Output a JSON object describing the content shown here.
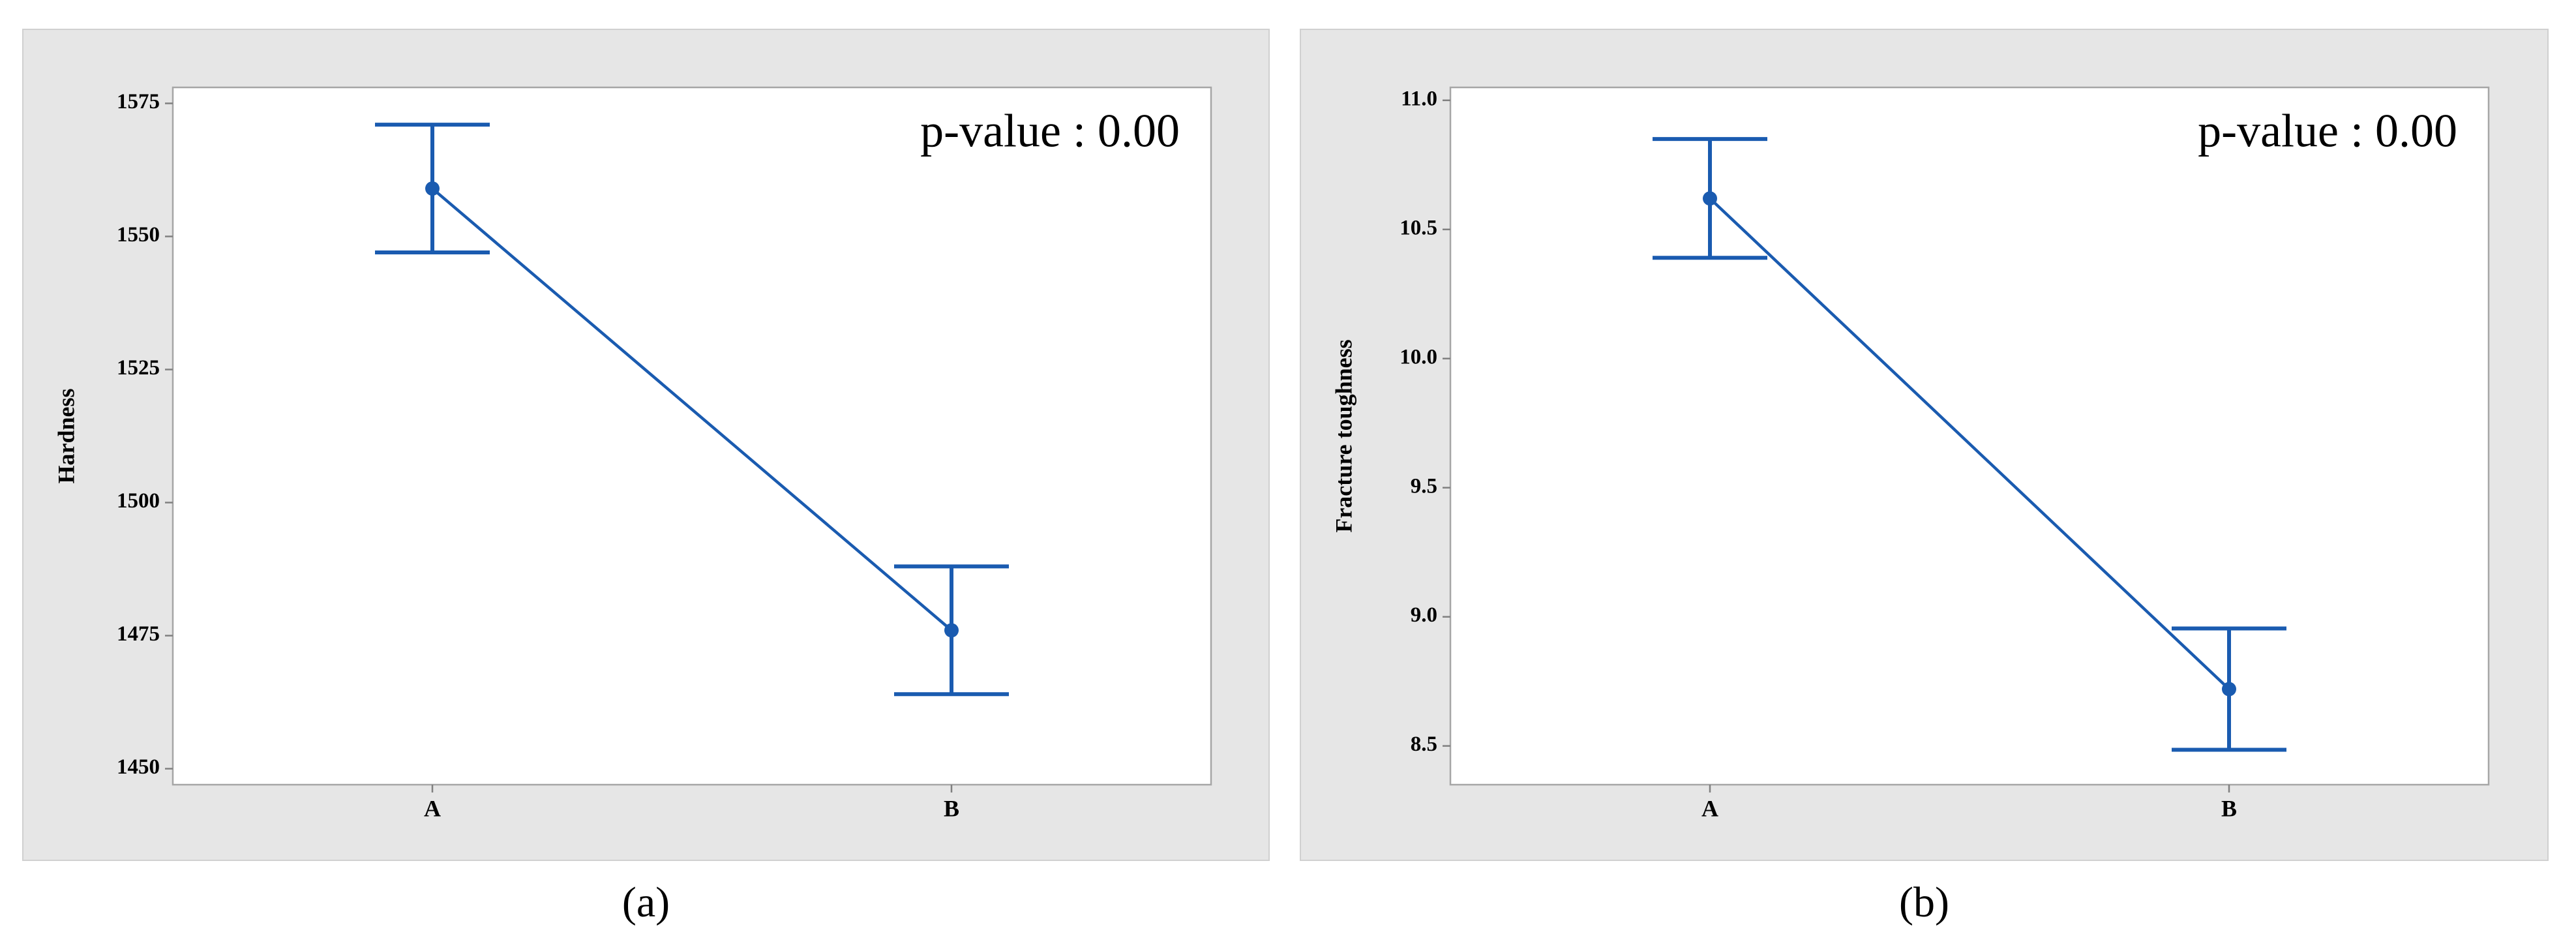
{
  "chart_data": [
    {
      "type": "line",
      "y_label": "Hardness",
      "categories": [
        "A",
        "B"
      ],
      "series": [
        {
          "color": "#1a5bb0",
          "values": [
            1559,
            1476
          ],
          "errors": [
            12,
            12
          ]
        }
      ],
      "ylim": [
        1447,
        1578
      ],
      "yticks": [
        1450,
        1475,
        1500,
        1525,
        1550,
        1575
      ],
      "annotation": "p-value : 0.00",
      "caption": "(a)"
    },
    {
      "type": "line",
      "y_label": "Fracture toughness",
      "categories": [
        "A",
        "B"
      ],
      "series": [
        {
          "color": "#1a5bb0",
          "values": [
            10.62,
            8.72
          ],
          "errors": [
            0.23,
            0.235
          ]
        }
      ],
      "ylim": [
        8.35,
        11.05
      ],
      "yticks": [
        8.5,
        {
          "value": 9,
          "label": "9.0"
        },
        9.5,
        {
          "value": 10,
          "label": "10.0"
        },
        10.5,
        {
          "value": 11,
          "label": "11.0"
        }
      ],
      "annotation": "p-value : 0.00",
      "caption": "(b)"
    }
  ]
}
